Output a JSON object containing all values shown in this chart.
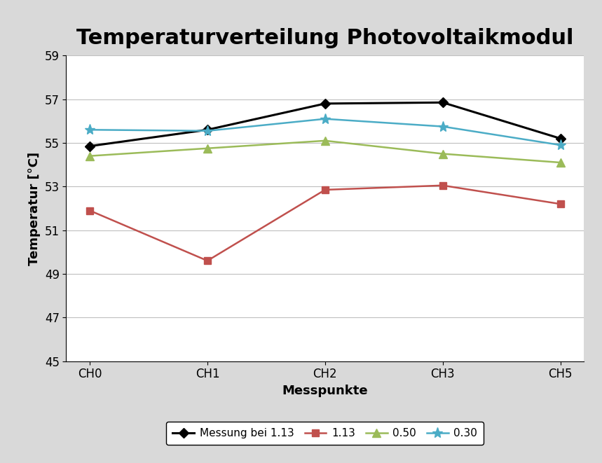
{
  "title": "Temperaturverteilung Photovoltaikmodul",
  "xlabel": "Messpunkte",
  "ylabel": "Temperatur [°C]",
  "categories": [
    "CH0",
    "CH1",
    "CH2",
    "CH3",
    "CH5"
  ],
  "series": [
    {
      "label": "Messung bei 1.13",
      "color": "#000000",
      "marker": "D",
      "markersize": 7,
      "linewidth": 2.2,
      "values": [
        54.85,
        55.6,
        56.8,
        56.85,
        55.2
      ]
    },
    {
      "label": "1.13",
      "color": "#C0504D",
      "marker": "s",
      "markersize": 7,
      "linewidth": 1.8,
      "values": [
        51.9,
        49.6,
        52.85,
        53.05,
        52.2
      ]
    },
    {
      "label": "0.50",
      "color": "#9BBB59",
      "marker": "^",
      "markersize": 8,
      "linewidth": 1.8,
      "values": [
        54.4,
        54.75,
        55.1,
        54.5,
        54.1
      ]
    },
    {
      "label": "0.30",
      "color": "#4BACC6",
      "marker": "*",
      "markersize": 11,
      "linewidth": 1.8,
      "values": [
        55.6,
        55.55,
        56.1,
        55.75,
        54.9
      ]
    }
  ],
  "ylim": [
    45,
    59
  ],
  "yticks": [
    45,
    47,
    49,
    51,
    53,
    55,
    57,
    59
  ],
  "figure_bg_color": "#D9D9D9",
  "plot_bg_color": "#ffffff",
  "grid_color": "#BFBFBF",
  "title_fontsize": 22,
  "axis_label_fontsize": 13,
  "tick_fontsize": 12,
  "legend_fontsize": 11
}
